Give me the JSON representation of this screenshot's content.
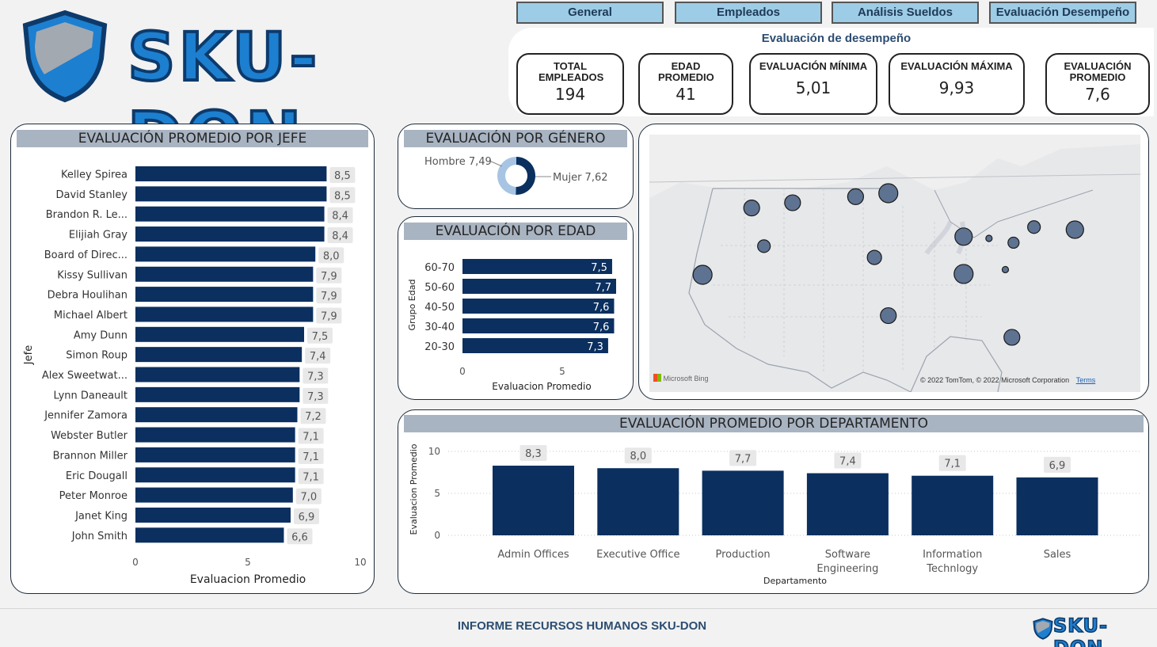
{
  "brand": {
    "name": "SKU-DON",
    "shield_icon": "shield-icon"
  },
  "nav": {
    "tabs": [
      {
        "label": "General"
      },
      {
        "label": "Empleados"
      },
      {
        "label": "Análisis Sueldos"
      },
      {
        "label": "Evaluación Desempeño"
      }
    ]
  },
  "kpis": {
    "section_title": "Evaluación de desempeño",
    "cards": [
      {
        "label": "TOTAL EMPLEADOS",
        "value": "194"
      },
      {
        "label": "EDAD PROMEDIO",
        "value": "41"
      },
      {
        "label": "EVALUACIÓN MÍNIMA",
        "value": "5,01"
      },
      {
        "label": "EVALUACIÓN MÁXIMA",
        "value": "9,93"
      },
      {
        "label": "EVALUACIÓN PROMEDIO",
        "value": "7,6"
      }
    ]
  },
  "colors": {
    "bar": "#0b2f5f",
    "title_band": "#a9b4c2",
    "donut_light": "#a7c5e3",
    "bubble": "#5e7291"
  },
  "chart_data": [
    {
      "id": "por-jefe",
      "type": "bar",
      "orientation": "horizontal",
      "title": "EVALUACIÓN PROMEDIO POR JEFE",
      "xlabel": "Evaluacion Promedio",
      "ylabel": "Jefe",
      "xlim": [
        0,
        10
      ],
      "xticks": [
        "0",
        "5",
        "10"
      ],
      "categories": [
        "Kelley Spirea",
        "David Stanley",
        "Brandon R. Le...",
        "Elijiah Gray",
        "Board of Direc...",
        "Kissy Sullivan",
        "Debra Houlihan",
        "Michael Albert",
        "Amy Dunn",
        "Simon Roup",
        "Alex Sweetwat...",
        "Lynn Daneault",
        "Jennifer Zamora",
        "Webster Butler",
        "Brannon Miller",
        "Eric Dougall",
        "Peter Monroe",
        "Janet King",
        "John Smith"
      ],
      "values": [
        8.5,
        8.5,
        8.4,
        8.4,
        8.0,
        7.9,
        7.9,
        7.9,
        7.5,
        7.4,
        7.3,
        7.3,
        7.2,
        7.1,
        7.1,
        7.1,
        7.0,
        6.9,
        6.6
      ],
      "data_labels": [
        "8,5",
        "8,5",
        "8,4",
        "8,4",
        "8,0",
        "7,9",
        "7,9",
        "7,9",
        "7,5",
        "7,4",
        "7,3",
        "7,3",
        "7,2",
        "7,1",
        "7,1",
        "7,1",
        "7,0",
        "6,9",
        "6,6"
      ]
    },
    {
      "id": "por-genero",
      "type": "pie",
      "style": "donut",
      "title": "EVALUACIÓN POR GÉNERO",
      "categories": [
        "Hombre",
        "Mujer"
      ],
      "values": [
        7.49,
        7.62
      ],
      "data_labels": [
        "Hombre 7,49",
        "Mujer 7,62"
      ]
    },
    {
      "id": "por-edad",
      "type": "bar",
      "orientation": "horizontal",
      "title": "EVALUACIÓN POR EDAD",
      "xlabel": "Evaluacion Promedio",
      "ylabel": "Grupo Edad",
      "xlim": [
        0,
        7.7
      ],
      "xticks": [
        "0",
        "5"
      ],
      "categories": [
        "60-70",
        "50-60",
        "40-50",
        "30-40",
        "20-30"
      ],
      "values": [
        7.5,
        7.7,
        7.6,
        7.6,
        7.3
      ],
      "data_labels": [
        "7,5",
        "7,7",
        "7,6",
        "7,6",
        "7,3"
      ]
    },
    {
      "id": "por-departamento",
      "type": "bar",
      "orientation": "vertical",
      "title": "EVALUACIÓN PROMEDIO POR DEPARTAMENTO",
      "xlabel": "Departamento",
      "ylabel": "Evaluacion Promedio",
      "ylim": [
        0,
        10
      ],
      "yticks": [
        "0",
        "5",
        "10"
      ],
      "categories": [
        "Admin Offices",
        "Executive Office",
        "Production",
        "Software Engineering",
        "Information Technlogy",
        "Sales"
      ],
      "values": [
        8.3,
        8.0,
        7.7,
        7.4,
        7.1,
        6.9
      ],
      "data_labels": [
        "8,3",
        "8,0",
        "7,7",
        "7,4",
        "7,1",
        "6,9"
      ]
    }
  ],
  "map": {
    "attribution_left": "Microsoft Bing",
    "attribution_right": "© 2022 TomTom, © 2022 Microsoft Corporation",
    "terms_link": "Terms",
    "bubbles": [
      {
        "lon": -96.8,
        "lat": 46.9,
        "size": 12
      },
      {
        "lon": -100.8,
        "lat": 46.5,
        "size": 10
      },
      {
        "lon": -108.5,
        "lat": 45.8,
        "size": 10
      },
      {
        "lon": -113.5,
        "lat": 45.2,
        "size": 10
      },
      {
        "lon": -112.0,
        "lat": 40.8,
        "size": 8
      },
      {
        "lon": -119.5,
        "lat": 37.5,
        "size": 12
      },
      {
        "lon": -98.5,
        "lat": 39.5,
        "size": 9
      },
      {
        "lon": -96.8,
        "lat": 32.8,
        "size": 10
      },
      {
        "lon": -87.6,
        "lat": 41.9,
        "size": 11
      },
      {
        "lon": -87.6,
        "lat": 37.6,
        "size": 12
      },
      {
        "lon": -84.5,
        "lat": 41.7,
        "size": 4
      },
      {
        "lon": -81.5,
        "lat": 41.2,
        "size": 7
      },
      {
        "lon": -82.5,
        "lat": 38.1,
        "size": 4
      },
      {
        "lon": -79.0,
        "lat": 43.0,
        "size": 8
      },
      {
        "lon": -74.0,
        "lat": 42.7,
        "size": 11
      },
      {
        "lon": -81.7,
        "lat": 30.3,
        "size": 10
      }
    ]
  },
  "footer": {
    "title": "INFORME RECURSOS HUMANOS SKU-DON"
  }
}
